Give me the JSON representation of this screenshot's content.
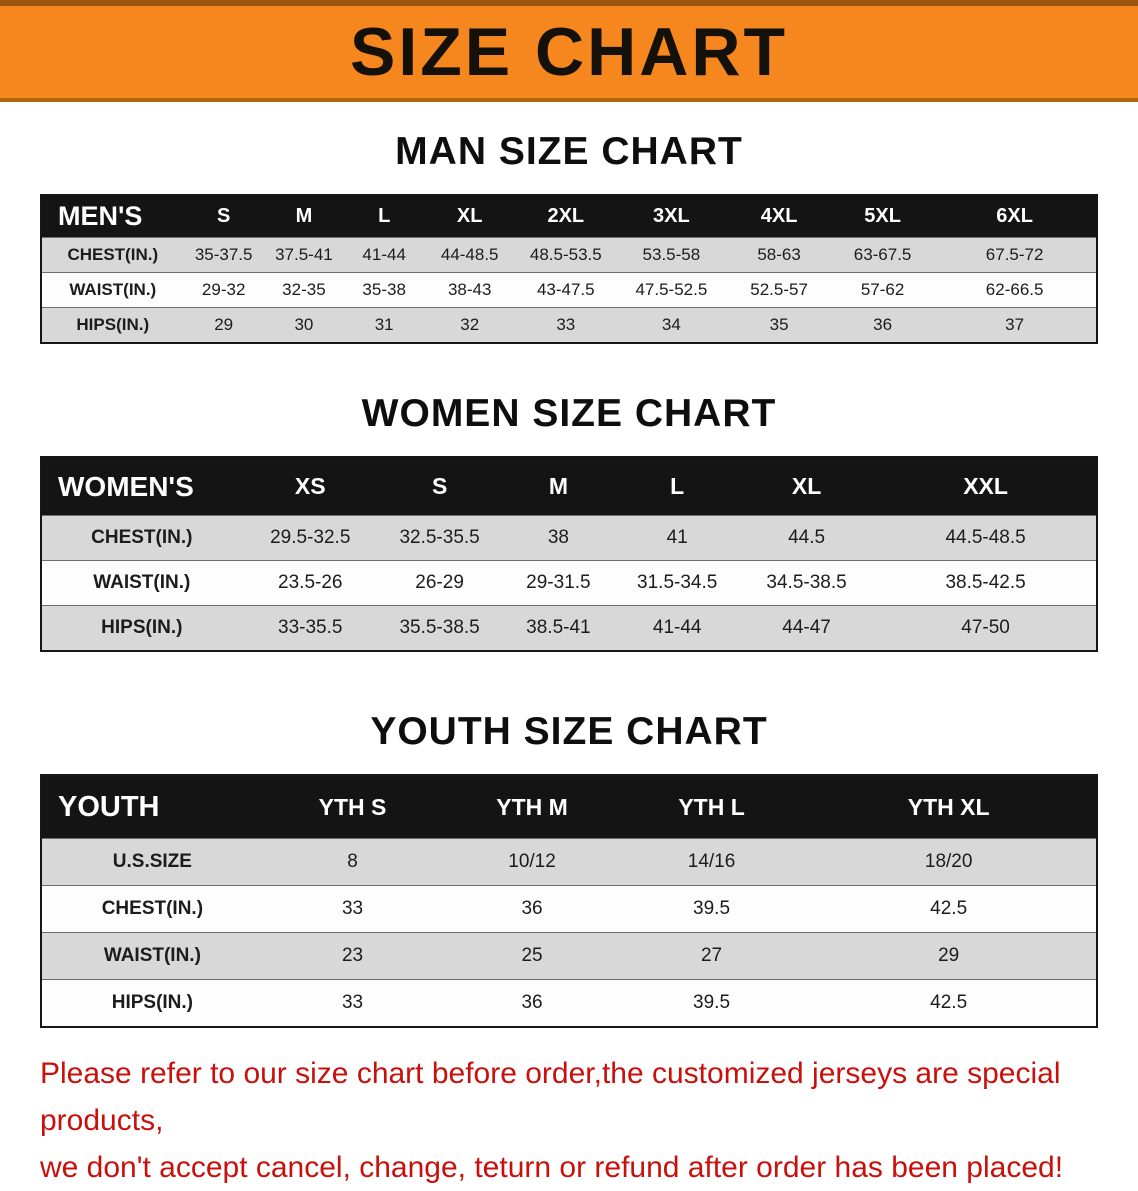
{
  "banner": {
    "title": "SIZE CHART",
    "bg_color": "#F6861E"
  },
  "sections": [
    {
      "id": "men",
      "heading": "MAN SIZE CHART",
      "table": {
        "header": [
          "MEN'S",
          "S",
          "M",
          "L",
          "XL",
          "2XL",
          "3XL",
          "4XL",
          "5XL",
          "6XL"
        ],
        "rows": [
          [
            "CHEST(IN.)",
            "35-37.5",
            "37.5-41",
            "41-44",
            "44-48.5",
            "48.5-53.5",
            "53.5-58",
            "58-63",
            "63-67.5",
            "67.5-72"
          ],
          [
            "WAIST(IN.)",
            "29-32",
            "32-35",
            "35-38",
            "38-43",
            "43-47.5",
            "47.5-52.5",
            "52.5-57",
            "57-62",
            "62-66.5"
          ],
          [
            "HIPS(IN.)",
            "29",
            "30",
            "31",
            "32",
            "33",
            "34",
            "35",
            "36",
            "37"
          ]
        ]
      }
    },
    {
      "id": "women",
      "heading": "WOMEN SIZE CHART",
      "table": {
        "header": [
          "WOMEN'S",
          "XS",
          "S",
          "M",
          "L",
          "XL",
          "XXL"
        ],
        "rows": [
          [
            "CHEST(IN.)",
            "29.5-32.5",
            "32.5-35.5",
            "38",
            "41",
            "44.5",
            "44.5-48.5"
          ],
          [
            "WAIST(IN.)",
            "23.5-26",
            "26-29",
            "29-31.5",
            "31.5-34.5",
            "34.5-38.5",
            "38.5-42.5"
          ],
          [
            "HIPS(IN.)",
            "33-35.5",
            "35.5-38.5",
            "38.5-41",
            "41-44",
            "44-47",
            "47-50"
          ]
        ]
      }
    },
    {
      "id": "youth",
      "heading": "YOUTH SIZE CHART",
      "table": {
        "header": [
          "YOUTH",
          "YTH S",
          "YTH M",
          "YTH L",
          "YTH XL"
        ],
        "rows": [
          [
            "U.S.SIZE",
            "8",
            "10/12",
            "14/16",
            "18/20"
          ],
          [
            "CHEST(IN.)",
            "33",
            "36",
            "39.5",
            "42.5"
          ],
          [
            "WAIST(IN.)",
            "23",
            "25",
            "27",
            "29"
          ],
          [
            "HIPS(IN.)",
            "33",
            "36",
            "39.5",
            "42.5"
          ]
        ]
      }
    }
  ],
  "disclaimer": {
    "line1": "Please refer to our size chart before order,the customized jerseys are special products,",
    "line2": "we don't accept cancel, change, teturn or refund after order has been placed!",
    "color": "#C8100C"
  }
}
